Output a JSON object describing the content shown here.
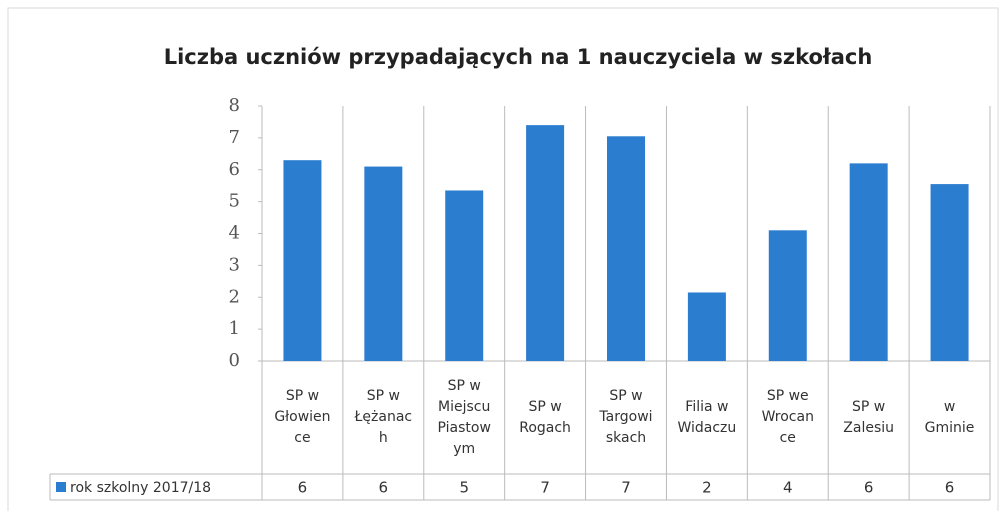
{
  "chart_data": {
    "type": "bar",
    "title": "Liczba uczniów przypadających na 1 nauczyciela w szkołach",
    "categories": [
      "SP w\nGłowien\nce",
      "SP w\nŁężanac\nh",
      "SP w\nMiejscu\nPiastow\nym",
      "SP w\nRogach",
      "SP w\nTargowi\nskach",
      "Filia w\nWidaczu",
      "SP we\nWrocan\nce",
      "SP w\nZalesiu",
      "w\nGminie"
    ],
    "series": [
      {
        "name": "rok szkolny 2017/18",
        "color": "#2b7dcf",
        "values": [
          6.3,
          6.1,
          5.35,
          7.4,
          7.05,
          2.15,
          4.1,
          6.2,
          5.55
        ],
        "value_labels": [
          "6",
          "6",
          "5",
          "7",
          "7",
          "2",
          "4",
          "6",
          "6"
        ]
      }
    ],
    "ylim": [
      0,
      8
    ],
    "yticks": [
      0,
      1,
      2,
      3,
      4,
      5,
      6,
      7,
      8
    ],
    "grid": false
  }
}
